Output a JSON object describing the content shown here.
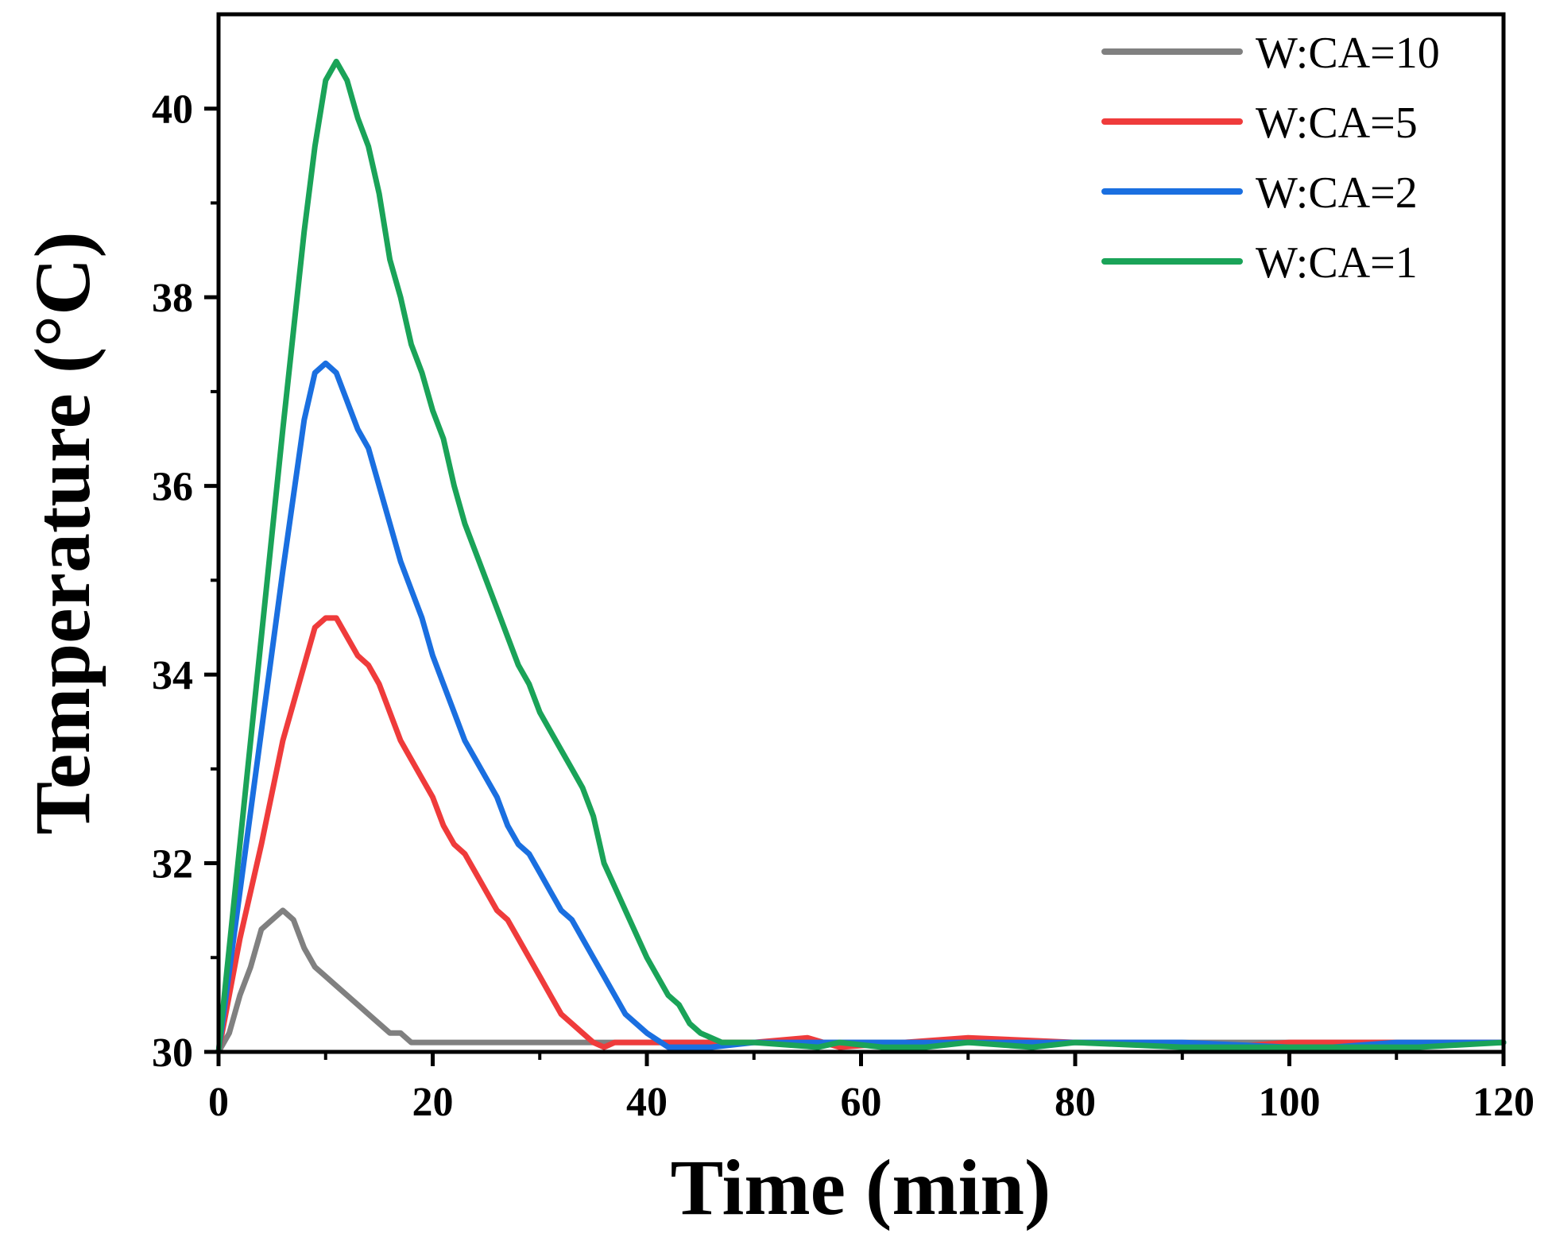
{
  "chart_data": {
    "type": "line",
    "title": "",
    "xlabel": "Time (min)",
    "ylabel": "Temperature (°C)",
    "xlim": [
      0,
      120
    ],
    "ylim": [
      30,
      41
    ],
    "xticks": [
      0,
      20,
      40,
      60,
      80,
      100,
      120
    ],
    "yticks": [
      30,
      32,
      34,
      36,
      38,
      40
    ],
    "grid": false,
    "legend_position": "top-right",
    "series": [
      {
        "name": "W:CA=10",
        "color": "#808080",
        "x": [
          0,
          1,
          2,
          3,
          4,
          5,
          6,
          7,
          8,
          9,
          10,
          11,
          12,
          13,
          14,
          15,
          16,
          17,
          18,
          20,
          30,
          40,
          50,
          60,
          70,
          80,
          90,
          100,
          110,
          120
        ],
        "y": [
          30,
          30.2,
          30.6,
          30.9,
          31.3,
          31.4,
          31.5,
          31.4,
          31.1,
          30.9,
          30.8,
          30.7,
          30.6,
          30.5,
          30.4,
          30.3,
          30.2,
          30.2,
          30.1,
          30.1,
          30.1,
          30.1,
          30.1,
          30.1,
          30.1,
          30.1,
          30.1,
          30.1,
          30.1,
          30.1
        ]
      },
      {
        "name": "W:CA=5",
        "color": "#ef3b3b",
        "x": [
          0,
          2,
          4,
          6,
          8,
          9,
          10,
          11,
          12,
          13,
          14,
          15,
          16,
          17,
          18,
          19,
          20,
          21,
          22,
          23,
          24,
          25,
          26,
          27,
          28,
          29,
          30,
          31,
          32,
          33,
          34,
          35,
          36,
          37,
          40,
          50,
          55,
          58,
          70,
          80,
          94,
          100,
          110,
          120
        ],
        "y": [
          30,
          31.2,
          32.2,
          33.3,
          34.1,
          34.5,
          34.6,
          34.6,
          34.4,
          34.2,
          34.1,
          33.9,
          33.6,
          33.3,
          33.1,
          32.9,
          32.7,
          32.4,
          32.2,
          32.1,
          31.9,
          31.7,
          31.5,
          31.4,
          31.2,
          31.0,
          30.8,
          30.6,
          30.4,
          30.3,
          30.2,
          30.1,
          30.05,
          30.1,
          30.1,
          30.1,
          30.15,
          30.05,
          30.15,
          30.1,
          30.05,
          30.1,
          30.1,
          30.1
        ]
      },
      {
        "name": "W:CA=2",
        "color": "#1a6fe0",
        "x": [
          0,
          2,
          4,
          6,
          8,
          9,
          10,
          11,
          12,
          13,
          14,
          15,
          16,
          17,
          18,
          19,
          20,
          21,
          22,
          23,
          24,
          25,
          26,
          27,
          28,
          29,
          30,
          31,
          32,
          33,
          34,
          35,
          36,
          37,
          38,
          40,
          42,
          44,
          46,
          50,
          60,
          70,
          80,
          90,
          100,
          104,
          110,
          120
        ],
        "y": [
          30,
          31.7,
          33.4,
          35.1,
          36.7,
          37.2,
          37.3,
          37.2,
          36.9,
          36.6,
          36.4,
          36.0,
          35.6,
          35.2,
          34.9,
          34.6,
          34.2,
          33.9,
          33.6,
          33.3,
          33.1,
          32.9,
          32.7,
          32.4,
          32.2,
          32.1,
          31.9,
          31.7,
          31.5,
          31.4,
          31.2,
          31.0,
          30.8,
          30.6,
          30.4,
          30.2,
          30.05,
          30.05,
          30.05,
          30.1,
          30.1,
          30.1,
          30.1,
          30.1,
          30.05,
          30.05,
          30.1,
          30.1
        ]
      },
      {
        "name": "W:CA=1",
        "color": "#1aa358",
        "x": [
          0,
          2,
          4,
          6,
          8,
          9,
          10,
          11,
          12,
          13,
          14,
          15,
          16,
          17,
          18,
          19,
          20,
          21,
          22,
          23,
          24,
          25,
          26,
          27,
          28,
          29,
          30,
          31,
          32,
          33,
          34,
          35,
          36,
          38,
          40,
          42,
          43,
          44,
          45,
          47,
          50,
          56,
          58,
          62,
          66,
          70,
          76,
          80,
          90,
          96,
          102,
          110,
          112,
          120
        ],
        "y": [
          30,
          32.2,
          34.4,
          36.6,
          38.7,
          39.6,
          40.3,
          40.5,
          40.3,
          39.9,
          39.6,
          39.1,
          38.4,
          38.0,
          37.5,
          37.2,
          36.8,
          36.5,
          36.0,
          35.6,
          35.3,
          35.0,
          34.7,
          34.4,
          34.1,
          33.9,
          33.6,
          33.4,
          33.2,
          33.0,
          32.8,
          32.5,
          32.0,
          31.5,
          31.0,
          30.6,
          30.5,
          30.3,
          30.2,
          30.1,
          30.1,
          30.05,
          30.1,
          30.05,
          30.05,
          30.1,
          30.05,
          30.1,
          30.05,
          30.05,
          30.05,
          30.05,
          30.05,
          30.1
        ]
      }
    ]
  }
}
